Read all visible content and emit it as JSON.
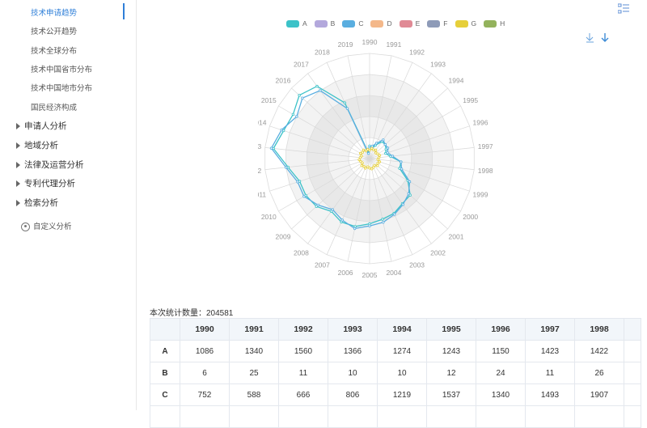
{
  "sidebar": {
    "sub_items": [
      "技术申请趋势",
      "技术公开趋势",
      "技术全球分布",
      "技术中国省市分布",
      "技术中国地市分布",
      "国民经济构成"
    ],
    "groups": [
      "申请人分析",
      "地域分析",
      "法律及运营分析",
      "专利代理分析",
      "检索分析"
    ],
    "custom": "自定义分析"
  },
  "legend": [
    {
      "label": "A",
      "color": "#3cc2c8"
    },
    {
      "label": "B",
      "color": "#b3a8dc"
    },
    {
      "label": "C",
      "color": "#5aaee0"
    },
    {
      "label": "D",
      "color": "#f4b88a"
    },
    {
      "label": "E",
      "color": "#e08a95"
    },
    {
      "label": "F",
      "color": "#8e9bb8"
    },
    {
      "label": "G",
      "color": "#e6cf3a"
    },
    {
      "label": "H",
      "color": "#93b25c"
    }
  ],
  "chart_data": {
    "type": "radar",
    "categories": [
      "1990",
      "1991",
      "1992",
      "1993",
      "1994",
      "1995",
      "1996",
      "1997",
      "1998",
      "1999",
      "2000",
      "2001",
      "2002",
      "2003",
      "2004",
      "2005",
      "2006",
      "2007",
      "2008",
      "2009",
      "2010",
      "2011",
      "2012",
      "2013",
      "2014",
      "2015",
      "2016",
      "2017",
      "2018",
      "2019"
    ],
    "series": [
      {
        "name": "A",
        "values": [
          0.12,
          0.1,
          0.14,
          0.2,
          0.2,
          0.18,
          0.16,
          0.2,
          0.3,
          0.3,
          0.42,
          0.52,
          0.53,
          0.57,
          0.59,
          0.62,
          0.66,
          0.66,
          0.62,
          0.68,
          0.7,
          0.7,
          0.78,
          0.92,
          0.86,
          0.84,
          0.9,
          0.85,
          0.58,
          0.06
        ]
      },
      {
        "name": "C",
        "values": [
          0.1,
          0.12,
          0.16,
          0.22,
          0.2,
          0.2,
          0.18,
          0.22,
          0.3,
          0.32,
          0.44,
          0.5,
          0.54,
          0.58,
          0.62,
          0.64,
          0.68,
          0.64,
          0.6,
          0.66,
          0.72,
          0.72,
          0.8,
          0.94,
          0.88,
          0.8,
          0.86,
          0.8,
          0.52,
          0.05
        ]
      },
      {
        "name": "G",
        "values": [
          0.08,
          0.1,
          0.09,
          0.1,
          0.08,
          0.09,
          0.1,
          0.09,
          0.08,
          0.1,
          0.09,
          0.1,
          0.08,
          0.09,
          0.1,
          0.09,
          0.08,
          0.1,
          0.09,
          0.1,
          0.08,
          0.09,
          0.1,
          0.09,
          0.08,
          0.1,
          0.09,
          0.1,
          0.08,
          0.09
        ]
      }
    ],
    "rmax": 1
  },
  "stats_label": "本次统计数量：204581",
  "table": {
    "headers": [
      "1990",
      "1991",
      "1992",
      "1993",
      "1994",
      "1995",
      "1996",
      "1997",
      "1998"
    ],
    "rows": [
      {
        "label": "A",
        "cells": [
          "1086",
          "1340",
          "1560",
          "1366",
          "1274",
          "1243",
          "1150",
          "1423",
          "1422"
        ]
      },
      {
        "label": "B",
        "cells": [
          "6",
          "25",
          "11",
          "10",
          "10",
          "12",
          "24",
          "11",
          "26"
        ]
      },
      {
        "label": "C",
        "cells": [
          "752",
          "588",
          "666",
          "806",
          "1219",
          "1537",
          "1340",
          "1493",
          "1907"
        ]
      }
    ]
  }
}
